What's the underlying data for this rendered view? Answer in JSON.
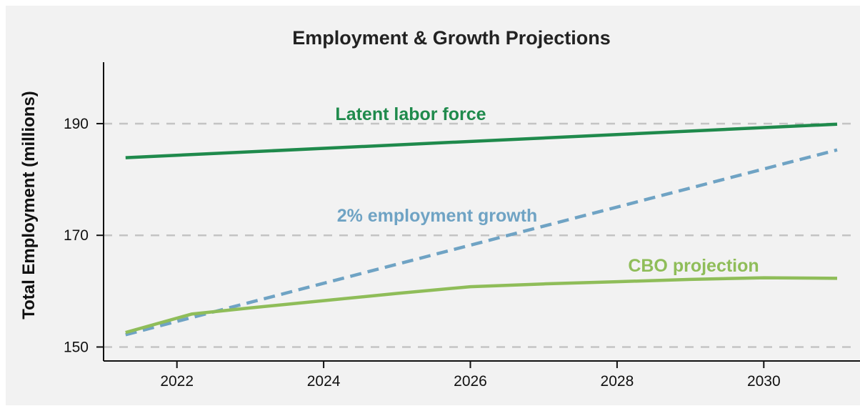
{
  "chart_data": {
    "type": "line",
    "title": "Employment & Growth Projections",
    "ylabel": "Total Employment (millions)",
    "xlabel": "",
    "xlim": [
      2021,
      2031
    ],
    "ylim": [
      147.5,
      201
    ],
    "grid": "horizontal dashed",
    "x_ticks": [
      "2022",
      "2024",
      "2026",
      "2028",
      "2030"
    ],
    "y_ticks": [
      "150",
      "170",
      "190"
    ],
    "series": [
      {
        "name": "Latent labor force",
        "color": "#1f8a4c",
        "style": "solid",
        "x": [
          2021.3,
          2031
        ],
        "values": [
          183.9,
          189.9
        ]
      },
      {
        "name": "2% employment growth",
        "color": "#6fa3c4",
        "style": "dashed",
        "x": [
          2021.3,
          2031
        ],
        "values": [
          152.2,
          185.3
        ]
      },
      {
        "name": "CBO projection",
        "color": "#8fbd59",
        "style": "solid",
        "x": [
          2021.3,
          2022.2,
          2023,
          2024,
          2025,
          2026,
          2027,
          2028,
          2029,
          2030,
          2031
        ],
        "values": [
          152.6,
          155.9,
          157.0,
          158.3,
          159.6,
          160.8,
          161.3,
          161.7,
          162.1,
          162.4,
          162.3
        ]
      }
    ]
  }
}
